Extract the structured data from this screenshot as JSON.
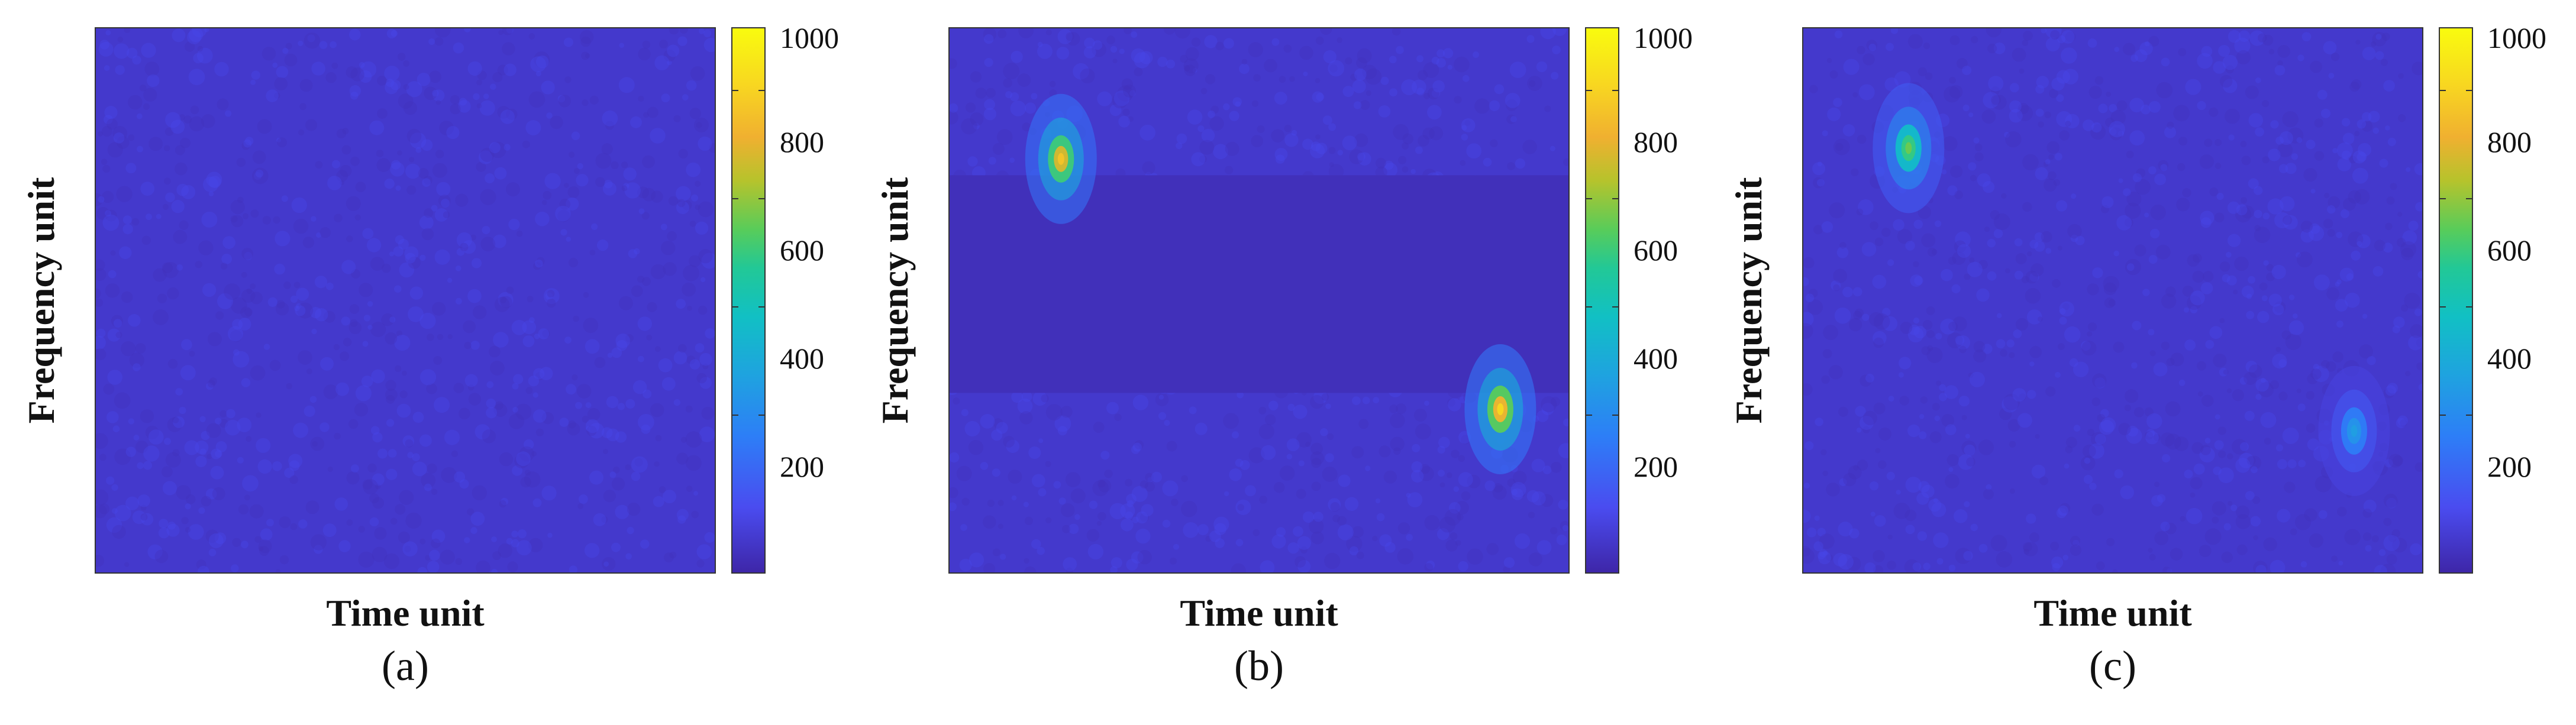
{
  "chart_data": [
    {
      "type": "heatmap",
      "panel_label": "(a)",
      "xlabel": "Time unit",
      "ylabel": "Frequency unit",
      "colorbar": {
        "ticks": [
          200,
          400,
          600,
          800,
          1000
        ],
        "range": [
          0,
          1000
        ],
        "colormap": "parula"
      },
      "background_level": 60,
      "removed_band": null,
      "peaks": []
    },
    {
      "type": "heatmap",
      "panel_label": "(b)",
      "xlabel": "Time unit",
      "ylabel": "Frequency unit",
      "colorbar": {
        "ticks": [
          200,
          400,
          600,
          800,
          1000
        ],
        "range": [
          0,
          1000
        ],
        "colormap": "parula"
      },
      "background_level": 60,
      "removed_band": {
        "level": 30,
        "from_top": 0.27,
        "to_top": 0.67
      },
      "peaks": [
        {
          "t": 0.18,
          "f": 0.76,
          "value": 850
        },
        {
          "t": 0.89,
          "f": 0.3,
          "value": 900
        }
      ]
    },
    {
      "type": "heatmap",
      "panel_label": "(c)",
      "xlabel": "Time unit",
      "ylabel": "Frequency unit",
      "colorbar": {
        "ticks": [
          200,
          400,
          600,
          800,
          1000
        ],
        "range": [
          0,
          1000
        ],
        "colormap": "parula"
      },
      "background_level": 60,
      "removed_band": null,
      "peaks": [
        {
          "t": 0.17,
          "f": 0.78,
          "value": 650
        },
        {
          "t": 0.89,
          "f": 0.26,
          "value": 350
        }
      ]
    }
  ],
  "colors": {
    "background": "#3e2fb0",
    "band": "#3a26a8",
    "axis": "#333333"
  }
}
